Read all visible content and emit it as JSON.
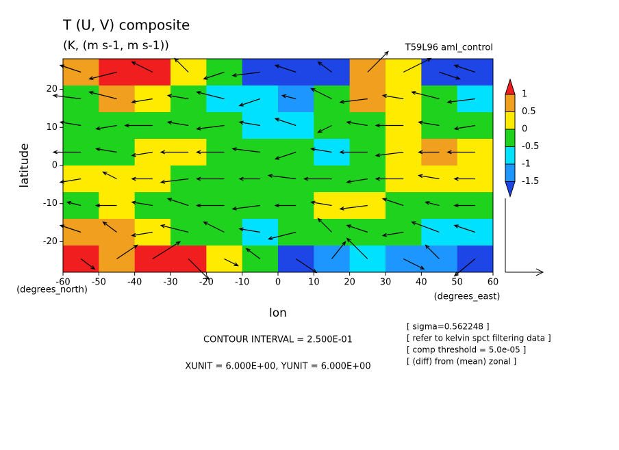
{
  "chart_data": {
    "type": "contour",
    "title": "T (U, V) composite",
    "subtitle": "(K, (m s-1, m s-1))",
    "run_label": "T59L96 aml_control",
    "xlabel": "lon",
    "ylabel": "latitude",
    "xunit_label": "(degrees_east)",
    "yunit_label": "(degrees_north)",
    "xlim": [
      -60,
      60
    ],
    "ylim": [
      -28,
      28
    ],
    "xticks": [
      -60,
      -50,
      -40,
      -30,
      -20,
      -10,
      0,
      10,
      20,
      30,
      40,
      50,
      60
    ],
    "yticks": [
      -20,
      -10,
      0,
      10,
      20
    ],
    "x": [
      -55,
      -45,
      -35,
      -25,
      -15,
      -5,
      5,
      15,
      25,
      35,
      45,
      55
    ],
    "y": [
      24.5,
      17.5,
      10.5,
      3.5,
      -3.5,
      -10.5,
      -17.5,
      -24.5
    ],
    "values": [
      [
        0.7,
        1.2,
        1.1,
        0.3,
        -0.3,
        -1.7,
        -1.7,
        -1.7,
        0.6,
        0.2,
        -1.7,
        -1.7
      ],
      [
        -0.3,
        0.6,
        0.2,
        -0.3,
        -0.7,
        -0.8,
        -1.2,
        -0.3,
        0.7,
        0.2,
        -0.3,
        -0.8
      ],
      [
        -0.3,
        -0.3,
        -0.2,
        -0.3,
        -0.3,
        -0.8,
        -0.7,
        -0.3,
        -0.2,
        0.3,
        -0.3,
        -0.3
      ],
      [
        -0.2,
        -0.3,
        0.3,
        0.3,
        -0.3,
        -0.3,
        -0.3,
        -0.7,
        -0.3,
        0.3,
        0.6,
        0.3
      ],
      [
        0.3,
        0.3,
        0.3,
        -0.3,
        -0.3,
        -0.3,
        -0.3,
        -0.3,
        -0.3,
        0.3,
        0.3,
        0.3
      ],
      [
        -0.3,
        0.3,
        -0.3,
        -0.3,
        -0.3,
        -0.3,
        -0.3,
        0.3,
        0.3,
        -0.3,
        -0.3,
        -0.3
      ],
      [
        0.6,
        0.7,
        0.2,
        -0.3,
        -0.3,
        -0.8,
        -0.3,
        -0.3,
        -0.3,
        -0.3,
        -0.8,
        -0.8
      ],
      [
        1.2,
        0.6,
        1.2,
        1.3,
        0.3,
        -0.3,
        -1.7,
        -1.2,
        -0.8,
        -1.2,
        -1.2,
        -1.7
      ]
    ],
    "levels": [
      -1.5,
      -1,
      -0.5,
      0,
      0.5,
      1
    ],
    "colors": [
      "#1e46e6",
      "#1e96ff",
      "#00e1ff",
      "#1ed21e",
      "#ffeb00",
      "#f0a01e",
      "#f01e1e"
    ],
    "u": [
      [
        -6,
        -8,
        -6,
        -4,
        -6,
        -8,
        -6,
        -4,
        6,
        8,
        6,
        -6
      ],
      [
        -8,
        -8,
        -6,
        -6,
        -8,
        -6,
        -4,
        -6,
        -8,
        -6,
        -8,
        -8
      ],
      [
        -6,
        -6,
        -8,
        -6,
        -8,
        -6,
        -6,
        -4,
        -6,
        -8,
        -6,
        -6
      ],
      [
        -8,
        -6,
        -6,
        -8,
        -8,
        -8,
        -6,
        -6,
        -8,
        -8,
        -6,
        -8
      ],
      [
        -6,
        -4,
        -6,
        -8,
        -8,
        -6,
        -8,
        -8,
        -6,
        -8,
        -6,
        -6
      ],
      [
        -4,
        -6,
        -6,
        -6,
        -8,
        -8,
        -6,
        -6,
        -8,
        -6,
        -4,
        -6
      ],
      [
        -6,
        -4,
        -6,
        -8,
        -6,
        -6,
        -8,
        -4,
        -6,
        -6,
        -8,
        -6
      ],
      [
        4,
        6,
        8,
        6,
        4,
        -4,
        6,
        4,
        -6,
        6,
        -4,
        -6
      ]
    ],
    "v": [
      [
        2,
        -2,
        3,
        4,
        -2,
        -1,
        2,
        3,
        6,
        4,
        -2,
        2
      ],
      [
        1,
        2,
        -1,
        1,
        2,
        -2,
        1,
        3,
        -1,
        1,
        2,
        -1
      ],
      [
        1,
        -1,
        0,
        1,
        -1,
        1,
        2,
        -2,
        1,
        0,
        1,
        -1
      ],
      [
        0,
        1,
        -1,
        0,
        0,
        1,
        -2,
        1,
        0,
        -1,
        0,
        0
      ],
      [
        -1,
        2,
        0,
        -1,
        0,
        0,
        1,
        0,
        -1,
        0,
        1,
        0
      ],
      [
        1,
        0,
        1,
        2,
        0,
        -1,
        0,
        1,
        -1,
        2,
        1,
        0
      ],
      [
        2,
        3,
        -1,
        2,
        3,
        1,
        -2,
        4,
        2,
        -1,
        3,
        2
      ],
      [
        -3,
        4,
        5,
        -6,
        -2,
        3,
        -4,
        5,
        6,
        -3,
        4,
        -5
      ]
    ],
    "contour_interval_label": "CONTOUR INTERVAL = 2.500E-01",
    "unit_label": "XUNIT = 6.000E+00, YUNIT = 6.000E+00",
    "notes": [
      "[ sigma=0.562248 ]",
      "[ refer to kelvin spct filtering data ]",
      "[ comp threshold = 5.0e-05 ]",
      "[ (diff) from (mean) zonal ]"
    ]
  }
}
